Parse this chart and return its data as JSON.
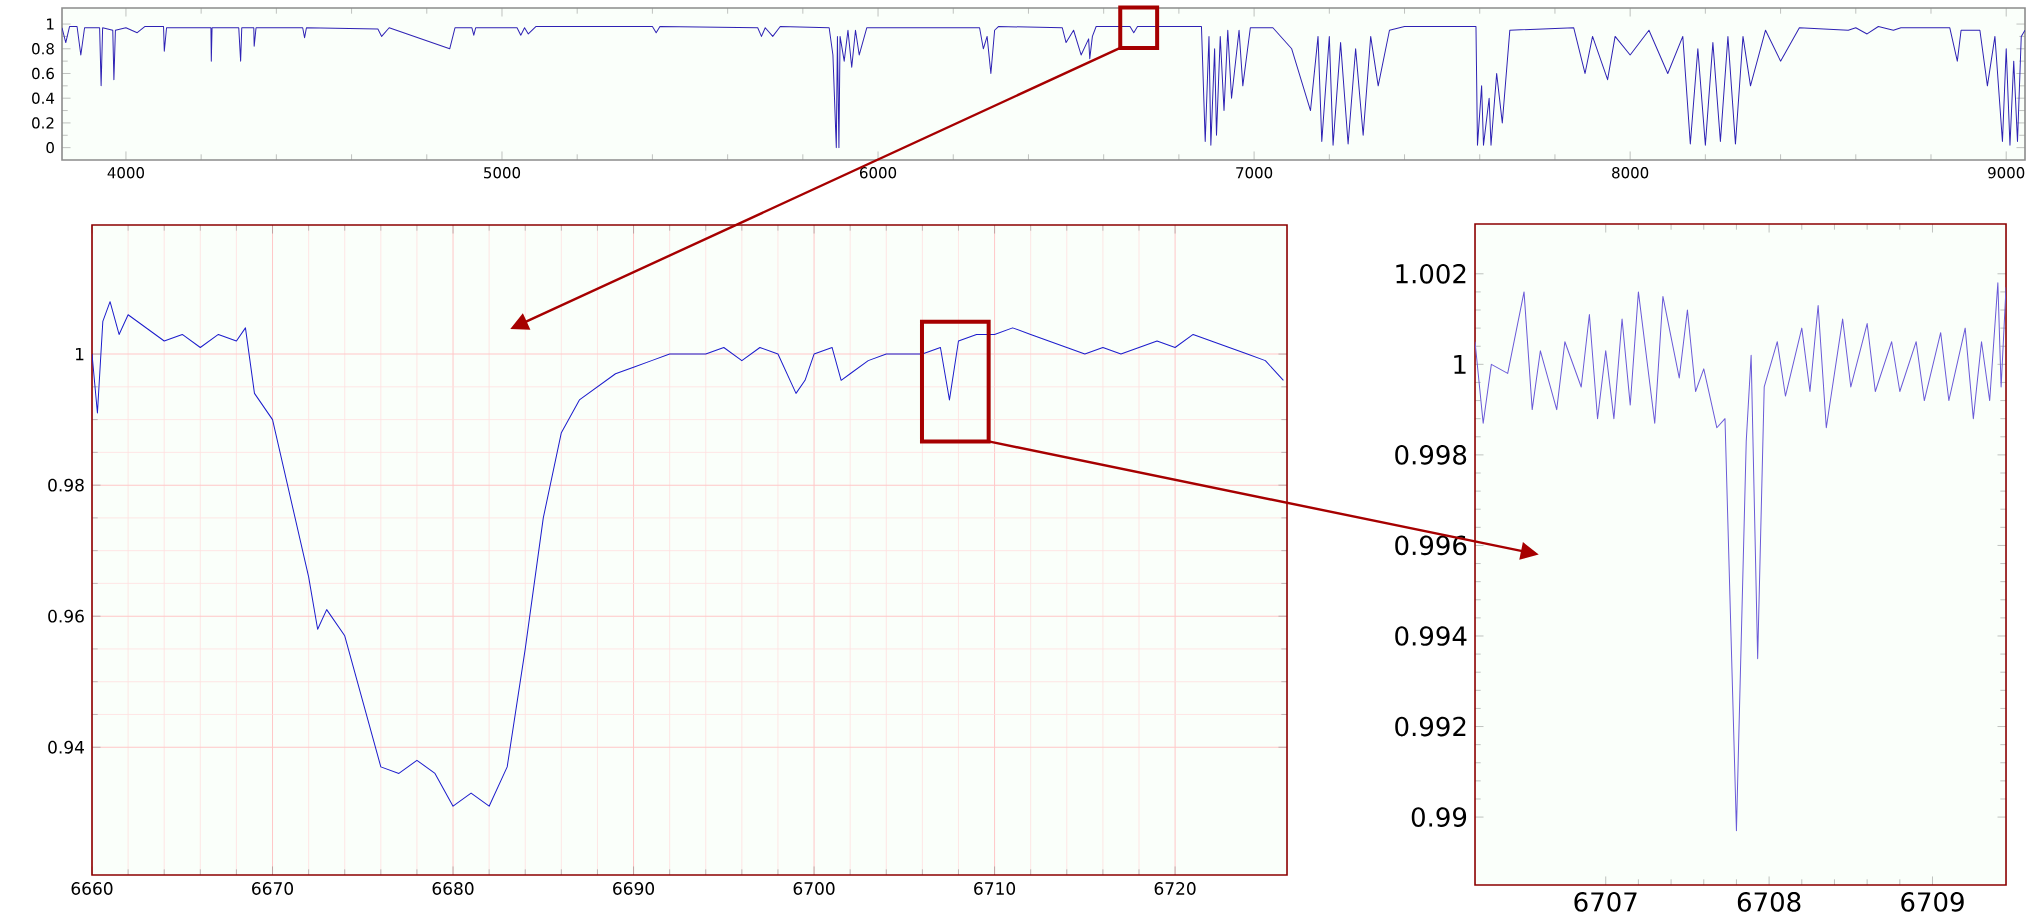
{
  "chart_data": [
    {
      "type": "line",
      "color": "#2e22b4",
      "xlim": [
        3830,
        9050
      ],
      "ylim": [
        -0.1,
        1.13
      ],
      "xticks": [
        4000,
        5000,
        6000,
        7000,
        8000,
        9000
      ],
      "yticks": [
        0,
        0.2,
        0.4,
        0.6,
        0.8,
        1
      ],
      "x": [
        3830,
        3840,
        3850,
        3870,
        3880,
        3890,
        3930,
        3934,
        3938,
        3965,
        3968,
        3972,
        4000,
        4030,
        4050,
        4100,
        4102,
        4108,
        4226,
        4227,
        4229,
        4300,
        4305,
        4308,
        4340,
        4341,
        4346,
        4470,
        4475,
        4480,
        4670,
        4680,
        4700,
        4861,
        4875,
        4920,
        4925,
        4930,
        5040,
        5050,
        5060,
        5070,
        5090,
        5400,
        5410,
        5420,
        5680,
        5690,
        5700,
        5720,
        5740,
        5870,
        5880,
        5889,
        5892,
        5896,
        5899,
        5910,
        5920,
        5930,
        5940,
        5950,
        5970,
        6270,
        6280,
        6290,
        6300,
        6310,
        6320,
        6490,
        6500,
        6520,
        6540,
        6560,
        6563,
        6570,
        6580,
        6670,
        6680,
        6690,
        6860,
        6870,
        6880,
        6885,
        6895,
        6900,
        6910,
        6920,
        6930,
        6940,
        6960,
        6970,
        6990,
        7050,
        7100,
        7150,
        7170,
        7180,
        7200,
        7210,
        7230,
        7250,
        7270,
        7290,
        7310,
        7330,
        7360,
        7400,
        7590,
        7594,
        7605,
        7610,
        7625,
        7630,
        7645,
        7660,
        7680,
        7850,
        7880,
        7900,
        7940,
        7960,
        8000,
        8050,
        8100,
        8140,
        8160,
        8180,
        8200,
        8220,
        8240,
        8260,
        8280,
        8300,
        8320,
        8360,
        8400,
        8450,
        8580,
        8600,
        8630,
        8660,
        8700,
        8720,
        8850,
        8870,
        8880,
        8930,
        8950,
        8970,
        8990,
        9000,
        9010,
        9020,
        9030,
        9040,
        9050
      ],
      "values": [
        0.97,
        0.85,
        0.98,
        0.98,
        0.75,
        0.97,
        0.97,
        0.5,
        0.97,
        0.95,
        0.55,
        0.95,
        0.97,
        0.93,
        0.98,
        0.98,
        0.78,
        0.97,
        0.97,
        0.7,
        0.97,
        0.97,
        0.7,
        0.97,
        0.97,
        0.82,
        0.97,
        0.97,
        0.89,
        0.97,
        0.96,
        0.9,
        0.97,
        0.8,
        0.97,
        0.97,
        0.91,
        0.97,
        0.97,
        0.91,
        0.97,
        0.92,
        0.98,
        0.98,
        0.93,
        0.98,
        0.97,
        0.9,
        0.97,
        0.9,
        0.98,
        0.97,
        0.75,
        0.0,
        0.9,
        0.0,
        0.9,
        0.7,
        0.95,
        0.65,
        0.95,
        0.75,
        0.97,
        0.97,
        0.8,
        0.9,
        0.6,
        0.95,
        0.98,
        0.97,
        0.85,
        0.95,
        0.75,
        0.88,
        0.72,
        0.9,
        0.98,
        0.98,
        0.93,
        0.98,
        0.98,
        0.05,
        0.9,
        0.02,
        0.8,
        0.1,
        0.9,
        0.3,
        0.95,
        0.4,
        0.95,
        0.5,
        0.97,
        0.97,
        0.8,
        0.3,
        0.9,
        0.05,
        0.9,
        0.02,
        0.85,
        0.03,
        0.8,
        0.1,
        0.9,
        0.5,
        0.95,
        0.98,
        0.98,
        0.02,
        0.5,
        0.02,
        0.4,
        0.02,
        0.6,
        0.2,
        0.95,
        0.97,
        0.6,
        0.9,
        0.55,
        0.9,
        0.75,
        0.95,
        0.6,
        0.9,
        0.03,
        0.8,
        0.02,
        0.85,
        0.05,
        0.9,
        0.03,
        0.9,
        0.5,
        0.95,
        0.7,
        0.97,
        0.95,
        0.97,
        0.92,
        0.98,
        0.95,
        0.97,
        0.97,
        0.7,
        0.95,
        0.95,
        0.5,
        0.9,
        0.05,
        0.8,
        0.02,
        0.7,
        0.05,
        0.9,
        0.95
      ]
    },
    {
      "type": "line",
      "color": "#1c1ccc",
      "xlim": [
        6660,
        6726.2
      ],
      "ylim": [
        0.9205,
        1.0197
      ],
      "xticks": [
        6660,
        6670,
        6680,
        6690,
        6700,
        6710,
        6720
      ],
      "yticks": [
        0.94,
        0.96,
        0.98,
        1
      ],
      "grid": true,
      "x": [
        6660,
        6660.3,
        6660.6,
        6661,
        6661.5,
        6662,
        6663,
        6664,
        6665,
        6666,
        6667,
        6668,
        6668.5,
        6669,
        6670,
        6671,
        6672,
        6672.5,
        6673,
        6674,
        6675,
        6676,
        6677,
        6678,
        6679,
        6680,
        6681,
        6682,
        6683,
        6684,
        6685,
        6686,
        6687,
        6688,
        6689,
        6690,
        6691,
        6692,
        6693,
        6694,
        6695,
        6696,
        6697,
        6698,
        6699,
        6699.5,
        6700,
        6701,
        6701.5,
        6702,
        6703,
        6704,
        6705,
        6706,
        6707,
        6707.5,
        6708,
        6709,
        6710,
        6711,
        6712,
        6713,
        6714,
        6715,
        6716,
        6717,
        6718,
        6719,
        6720,
        6721,
        6722,
        6723,
        6724,
        6725,
        6726
      ],
      "values": [
        1.0,
        0.991,
        1.005,
        1.008,
        1.003,
        1.006,
        1.004,
        1.002,
        1.003,
        1.001,
        1.003,
        1.002,
        1.004,
        0.994,
        0.99,
        0.978,
        0.966,
        0.958,
        0.961,
        0.957,
        0.947,
        0.937,
        0.936,
        0.938,
        0.936,
        0.931,
        0.933,
        0.931,
        0.937,
        0.955,
        0.975,
        0.988,
        0.993,
        0.995,
        0.997,
        0.998,
        0.999,
        1.0,
        1.0,
        1.0,
        1.001,
        0.999,
        1.001,
        1.0,
        0.994,
        0.996,
        1.0,
        1.001,
        0.996,
        0.997,
        0.999,
        1.0,
        1.0,
        1.0,
        1.001,
        0.993,
        1.002,
        1.003,
        1.003,
        1.004,
        1.003,
        1.002,
        1.001,
        1.0,
        1.001,
        1.0,
        1.001,
        1.002,
        1.001,
        1.003,
        1.002,
        1.001,
        1.0,
        0.999,
        0.996
      ]
    },
    {
      "type": "line",
      "color": "#6a5ad8",
      "xlim": [
        6706.2,
        6709.45
      ],
      "ylim": [
        0.9885,
        1.0031
      ],
      "xticks": [
        6707,
        6708,
        6709
      ],
      "yticks": [
        0.99,
        0.992,
        0.994,
        0.996,
        0.998,
        1,
        1.002
      ],
      "x": [
        6706.2,
        6706.25,
        6706.3,
        6706.4,
        6706.5,
        6706.55,
        6706.6,
        6706.7,
        6706.75,
        6706.85,
        6706.9,
        6706.95,
        6707.0,
        6707.05,
        6707.1,
        6707.15,
        6707.2,
        6707.3,
        6707.35,
        6707.45,
        6707.5,
        6707.55,
        6707.6,
        6707.68,
        6707.73,
        6707.8,
        6707.86,
        6707.89,
        6707.93,
        6707.97,
        6708.05,
        6708.1,
        6708.2,
        6708.25,
        6708.3,
        6708.35,
        6708.45,
        6708.5,
        6708.6,
        6708.65,
        6708.75,
        6708.8,
        6708.9,
        6708.95,
        6709.05,
        6709.1,
        6709.2,
        6709.25,
        6709.3,
        6709.35,
        6709.4,
        6709.42,
        6709.45
      ],
      "values": [
        1.0005,
        0.9987,
        1.0,
        0.9998,
        1.0016,
        0.999,
        1.0003,
        0.999,
        1.0005,
        0.9995,
        1.0011,
        0.9988,
        1.0003,
        0.9988,
        1.001,
        0.9991,
        1.0016,
        0.9987,
        1.0015,
        0.9997,
        1.0012,
        0.9994,
        0.9999,
        0.9986,
        0.9988,
        0.9897,
        0.9983,
        1.0002,
        0.9935,
        0.9995,
        1.0005,
        0.9993,
        1.0008,
        0.9994,
        1.0013,
        0.9986,
        1.001,
        0.9995,
        1.0009,
        0.9994,
        1.0005,
        0.9994,
        1.0005,
        0.9992,
        1.0007,
        0.9992,
        1.0008,
        0.9988,
        1.0005,
        0.9992,
        1.0018,
        0.9995,
        1.0017
      ]
    }
  ]
}
